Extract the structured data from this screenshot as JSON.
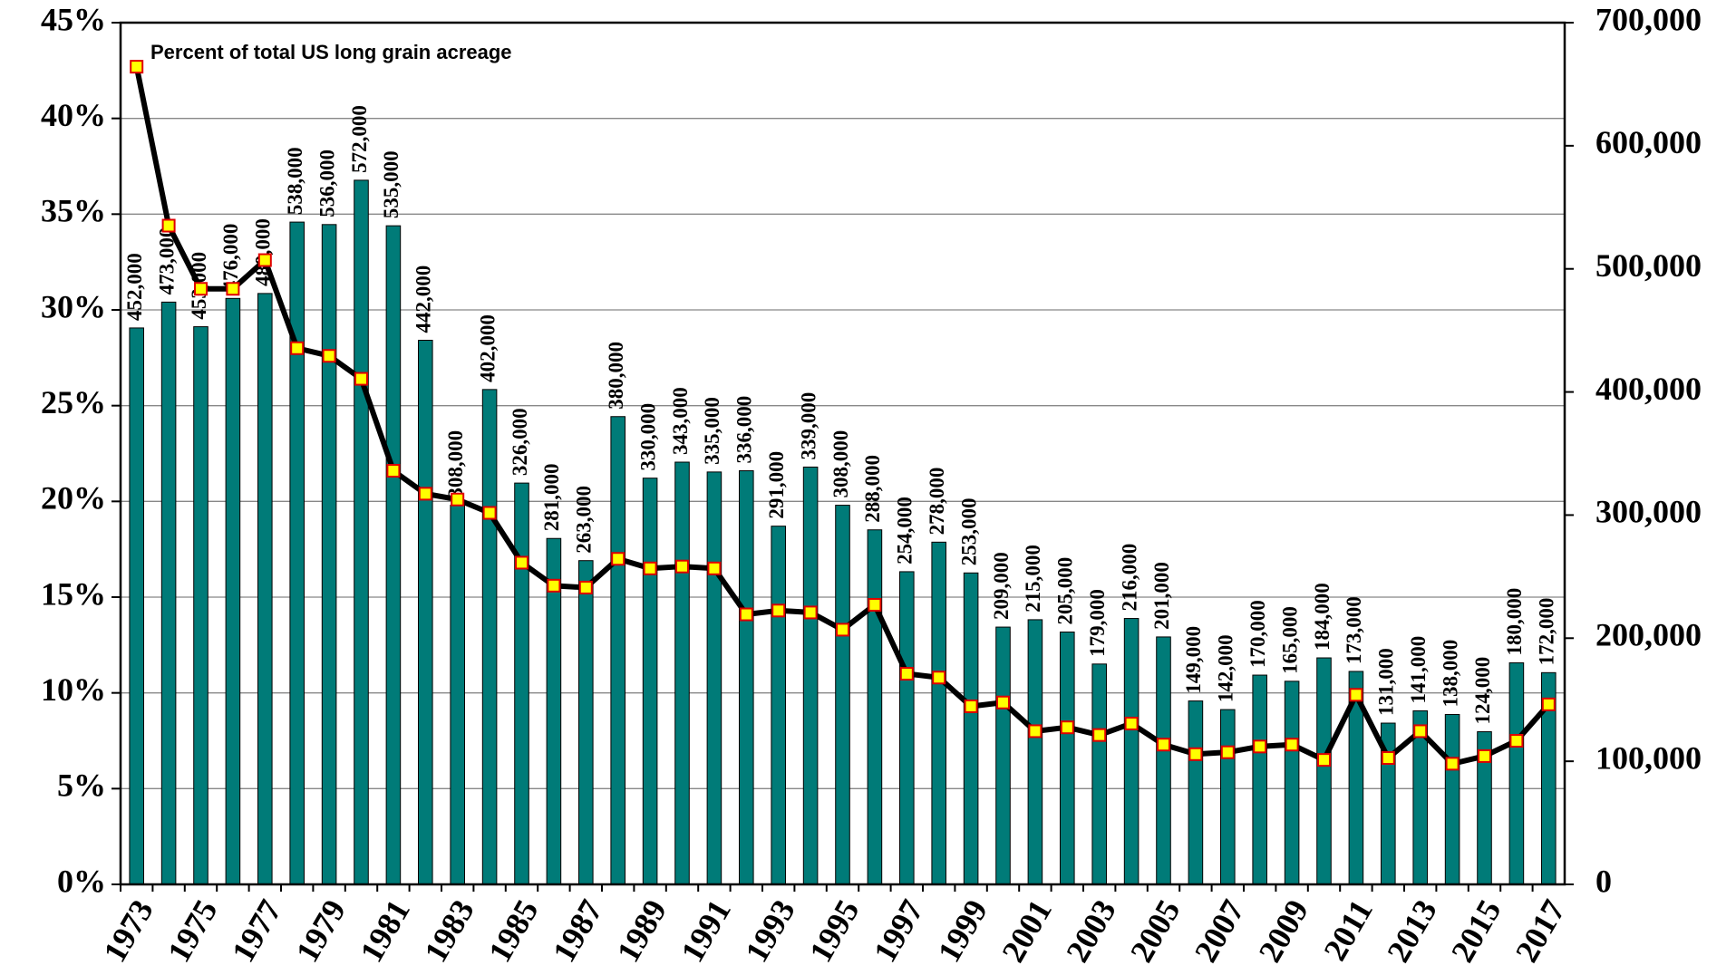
{
  "chart_data": {
    "type": "bar_line",
    "annotation": "Percent of total US long grain acreage",
    "categories": [
      "1973",
      null,
      "1975",
      null,
      "1977",
      null,
      "1979",
      null,
      "1981",
      null,
      "1983",
      null,
      "1985",
      null,
      "1987",
      null,
      "1989",
      null,
      "1991",
      null,
      "1993",
      null,
      "1995",
      null,
      "1997",
      null,
      "1999",
      null,
      "2001",
      null,
      "2003",
      null,
      "2005",
      null,
      "2007",
      null,
      "2009",
      null,
      "2011",
      null,
      "2013",
      null,
      "2015",
      null,
      "2017"
    ],
    "series": [
      {
        "type": "bar",
        "axis": "y2",
        "color": "#007b78",
        "values": [
          452000,
          473000,
          453000,
          476000,
          480000,
          538000,
          536000,
          572000,
          535000,
          442000,
          308000,
          402000,
          326000,
          281000,
          263000,
          380000,
          330000,
          343000,
          335000,
          336000,
          291000,
          339000,
          308000,
          288000,
          254000,
          278000,
          253000,
          209000,
          215000,
          205000,
          179000,
          216000,
          201000,
          149000,
          142000,
          170000,
          165000,
          184000,
          173000,
          131000,
          141000,
          138000,
          124000,
          180000,
          172000
        ],
        "value_labels": [
          "452,000",
          "473,000",
          "453,000",
          "476,000",
          "480,000",
          "538,000",
          "536,000",
          "572,000",
          "535,000",
          "442,000",
          "308,000",
          "402,000",
          "326,000",
          "281,000",
          "263,000",
          "380,000",
          "330,000",
          "343,000",
          "335,000",
          "336,000",
          "291,000",
          "339,000",
          "308,000",
          "288,000",
          "254,000",
          "278,000",
          "253,000",
          "209,000",
          "215,000",
          "205,000",
          "179,000",
          "216,000",
          "201,000",
          "149,000",
          "142,000",
          "170,000",
          "165,000",
          "184,000",
          "173,000",
          "131,000",
          "141,000",
          "138,000",
          "124,000",
          "180,000",
          "172,000"
        ]
      },
      {
        "type": "line",
        "axis": "y",
        "color": "#000000",
        "marker_color": "#ffff00",
        "marker_edge": "#e00000",
        "values": [
          42.7,
          34.4,
          31.1,
          31.1,
          32.6,
          28.0,
          27.6,
          26.4,
          21.6,
          20.4,
          20.1,
          19.4,
          16.8,
          15.6,
          15.5,
          17.0,
          16.5,
          16.6,
          16.5,
          14.1,
          14.3,
          14.2,
          13.3,
          14.6,
          11.0,
          10.8,
          9.3,
          9.5,
          8.0,
          8.2,
          7.8,
          8.4,
          7.3,
          6.8,
          6.9,
          7.2,
          7.3,
          6.5,
          9.9,
          6.6,
          8.0,
          6.3,
          6.7,
          7.5,
          9.4
        ]
      }
    ],
    "ylim": [
      0,
      45
    ],
    "yticks": [
      {
        "value": 0,
        "label": "0%"
      },
      {
        "value": 5,
        "label": "5%"
      },
      {
        "value": 10,
        "label": "10%"
      },
      {
        "value": 15,
        "label": "15%"
      },
      {
        "value": 20,
        "label": "20%"
      },
      {
        "value": 25,
        "label": "25%"
      },
      {
        "value": 30,
        "label": "30%"
      },
      {
        "value": 35,
        "label": "35%"
      },
      {
        "value": 40,
        "label": "40%"
      },
      {
        "value": 45,
        "label": "45%"
      }
    ],
    "y2lim": [
      0,
      700000
    ],
    "y2ticks": [
      0,
      {
        "value": 100000,
        "label": "100,000"
      },
      {
        "value": 200000,
        "label": "200,000"
      },
      {
        "value": 300000,
        "label": "300,000"
      },
      {
        "value": 400000,
        "label": "400,000"
      },
      {
        "value": 500000,
        "label": "500,000"
      },
      {
        "value": 600000,
        "label": "600,000"
      },
      {
        "value": 700000,
        "label": "700,000"
      }
    ],
    "grid": true
  }
}
